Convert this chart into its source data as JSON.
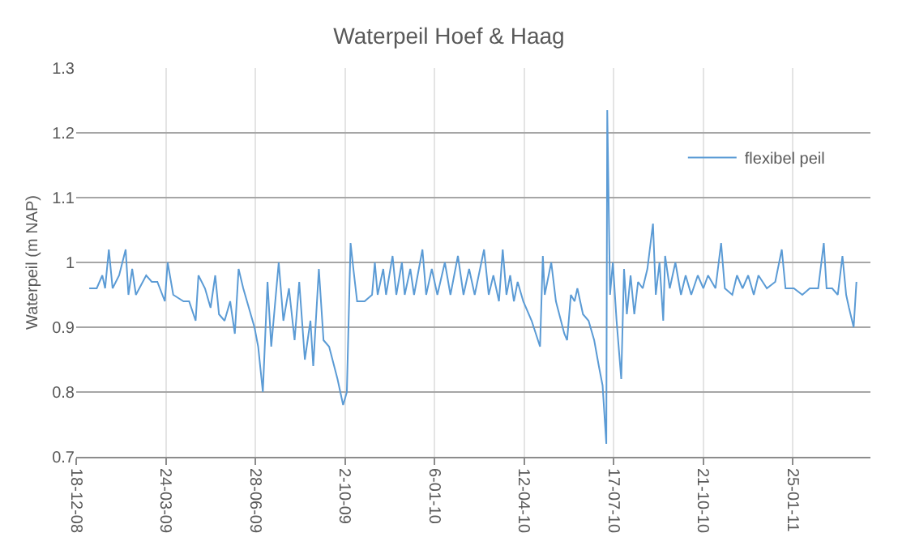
{
  "chart_data": {
    "type": "line",
    "title": "Waterpeil Hoef & Haag",
    "ylabel": "Waterpeil (m NAP)",
    "series": [
      {
        "name": "flexibel peil",
        "color": "#5b9bd5",
        "x": [
          "2009-01-01",
          "2009-01-09",
          "2009-01-15",
          "2009-01-18",
          "2009-01-22",
          "2009-01-26",
          "2009-02-02",
          "2009-02-09",
          "2009-02-12",
          "2009-02-16",
          "2009-02-20",
          "2009-03-03",
          "2009-03-09",
          "2009-03-15",
          "2009-03-23",
          "2009-03-26",
          "2009-04-01",
          "2009-04-12",
          "2009-04-18",
          "2009-04-25",
          "2009-04-28",
          "2009-05-05",
          "2009-05-11",
          "2009-05-16",
          "2009-05-20",
          "2009-05-26",
          "2009-06-01",
          "2009-06-06",
          "2009-06-10",
          "2009-06-15",
          "2009-06-27",
          "2009-07-01",
          "2009-07-06",
          "2009-07-11",
          "2009-07-15",
          "2009-07-23",
          "2009-07-28",
          "2009-08-03",
          "2009-08-09",
          "2009-08-14",
          "2009-08-20",
          "2009-08-26",
          "2009-08-29",
          "2009-09-04",
          "2009-09-09",
          "2009-09-15",
          "2009-09-24",
          "2009-09-30",
          "2009-10-04",
          "2009-10-08",
          "2009-10-11",
          "2009-10-15",
          "2009-10-23",
          "2009-10-31",
          "2009-11-03",
          "2009-11-06",
          "2009-11-12",
          "2009-11-15",
          "2009-11-22",
          "2009-11-26",
          "2009-12-02",
          "2009-12-05",
          "2009-12-11",
          "2009-12-15",
          "2009-12-24",
          "2009-12-28",
          "2010-01-03",
          "2010-01-09",
          "2010-01-17",
          "2010-01-23",
          "2010-01-31",
          "2010-02-06",
          "2010-02-12",
          "2010-02-18",
          "2010-02-28",
          "2010-03-05",
          "2010-03-10",
          "2010-03-16",
          "2010-03-20",
          "2010-03-24",
          "2010-03-28",
          "2010-04-01",
          "2010-04-05",
          "2010-04-11",
          "2010-04-20",
          "2010-04-29",
          "2010-05-02",
          "2010-05-04",
          "2010-05-11",
          "2010-05-16",
          "2010-05-25",
          "2010-05-28",
          "2010-06-01",
          "2010-06-05",
          "2010-06-08",
          "2010-06-14",
          "2010-06-20",
          "2010-06-26",
          "2010-07-01",
          "2010-07-05",
          "2010-07-09",
          "2010-07-10",
          "2010-07-13",
          "2010-07-16",
          "2010-07-20",
          "2010-07-25",
          "2010-07-28",
          "2010-07-31",
          "2010-08-04",
          "2010-08-08",
          "2010-08-12",
          "2010-08-17",
          "2010-08-22",
          "2010-08-28",
          "2010-08-31",
          "2010-09-04",
          "2010-09-08",
          "2010-09-10",
          "2010-09-15",
          "2010-09-21",
          "2010-09-27",
          "2010-10-02",
          "2010-10-08",
          "2010-10-15",
          "2010-10-21",
          "2010-10-26",
          "2010-11-03",
          "2010-11-09",
          "2010-11-13",
          "2010-11-21",
          "2010-11-26",
          "2010-12-02",
          "2010-12-08",
          "2010-12-14",
          "2010-12-19",
          "2010-12-28",
          "2011-01-06",
          "2011-01-13",
          "2011-01-17",
          "2011-01-26",
          "2011-02-04",
          "2011-02-12",
          "2011-02-21",
          "2011-02-27",
          "2011-03-02",
          "2011-03-08",
          "2011-03-14",
          "2011-03-19",
          "2011-03-23",
          "2011-03-26",
          "2011-03-31",
          "2011-04-03"
        ],
        "values": [
          0.96,
          0.96,
          0.98,
          0.96,
          1.02,
          0.96,
          0.98,
          1.02,
          0.95,
          0.99,
          0.95,
          0.98,
          0.97,
          0.97,
          0.94,
          1.0,
          0.95,
          0.94,
          0.94,
          0.91,
          0.98,
          0.96,
          0.93,
          0.98,
          0.92,
          0.91,
          0.94,
          0.89,
          0.99,
          0.96,
          0.9,
          0.87,
          0.8,
          0.97,
          0.87,
          1.0,
          0.91,
          0.96,
          0.88,
          0.97,
          0.85,
          0.91,
          0.84,
          0.99,
          0.88,
          0.87,
          0.82,
          0.78,
          0.8,
          1.03,
          0.99,
          0.94,
          0.94,
          0.95,
          1.0,
          0.95,
          0.99,
          0.95,
          1.01,
          0.95,
          1.0,
          0.95,
          0.99,
          0.95,
          1.02,
          0.95,
          0.99,
          0.95,
          1.0,
          0.95,
          1.01,
          0.95,
          0.99,
          0.95,
          1.02,
          0.95,
          0.98,
          0.94,
          1.02,
          0.95,
          0.98,
          0.94,
          0.97,
          0.94,
          0.91,
          0.87,
          1.01,
          0.95,
          1.0,
          0.94,
          0.89,
          0.88,
          0.95,
          0.94,
          0.96,
          0.92,
          0.91,
          0.88,
          0.84,
          0.81,
          0.72,
          1.235,
          0.95,
          1.0,
          0.91,
          0.82,
          0.99,
          0.92,
          0.98,
          0.92,
          0.97,
          0.96,
          0.99,
          1.06,
          0.95,
          1.0,
          0.91,
          1.01,
          0.96,
          1.0,
          0.95,
          0.98,
          0.95,
          0.98,
          0.96,
          0.98,
          0.96,
          1.03,
          0.96,
          0.95,
          0.98,
          0.96,
          0.98,
          0.95,
          0.98,
          0.96,
          0.97,
          1.02,
          0.96,
          0.96,
          0.95,
          0.96,
          0.96,
          1.03,
          0.96,
          0.96,
          0.95,
          1.01,
          0.95,
          0.93,
          0.9,
          0.97
        ]
      }
    ],
    "xlim": [
      "2008-12-18",
      "2011-04-18"
    ],
    "xticks": [
      {
        "value": "2008-12-18",
        "label": "18-12-08"
      },
      {
        "value": "2009-03-24",
        "label": "24-03-09"
      },
      {
        "value": "2009-06-28",
        "label": "28-06-09"
      },
      {
        "value": "2009-10-02",
        "label": "2-10-09"
      },
      {
        "value": "2010-01-06",
        "label": "6-01-10"
      },
      {
        "value": "2010-04-12",
        "label": "12-04-10"
      },
      {
        "value": "2010-07-17",
        "label": "17-07-10"
      },
      {
        "value": "2010-10-21",
        "label": "21-10-10"
      },
      {
        "value": "2011-01-25",
        "label": "25-01-11"
      }
    ],
    "ylim": [
      0.7,
      1.3
    ],
    "yticks": [
      0.7,
      0.8,
      0.9,
      1,
      1.1,
      1.2,
      1.3
    ],
    "grid": true,
    "legend": "top right",
    "marker": "none",
    "line_style": "solid"
  }
}
